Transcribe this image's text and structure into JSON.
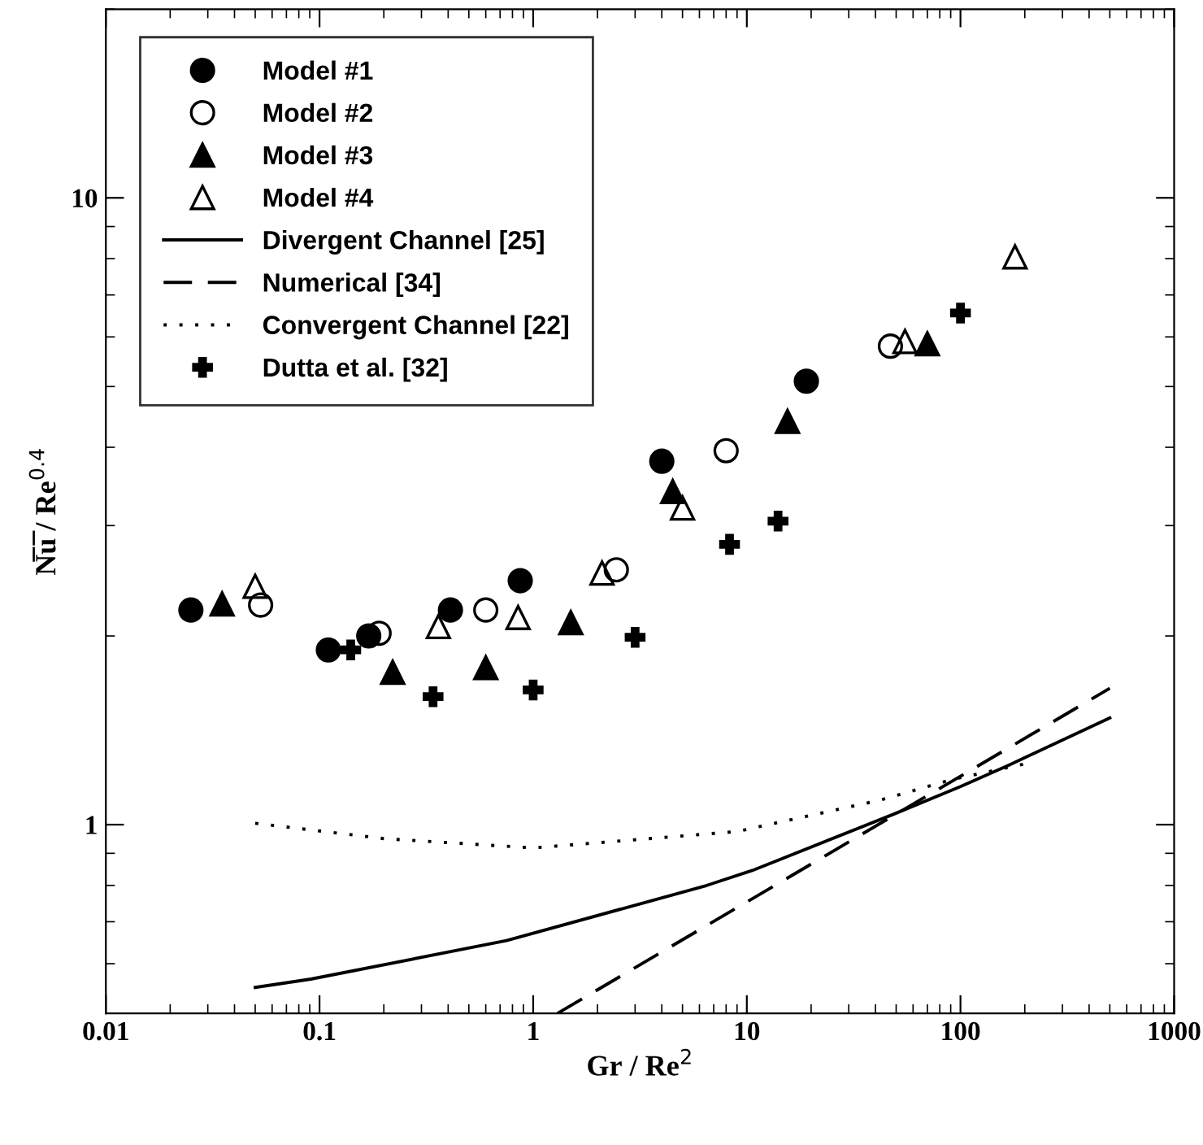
{
  "chart_data": {
    "type": "scatter",
    "xlabel": "Gr / Re$^{2}$",
    "ylabel": "N̅u̅ / Re$^{0.4}$",
    "log": "xy",
    "xlim": [
      0.01,
      1000
    ],
    "ylim": [
      0.5,
      20
    ],
    "xticks": [
      0.01,
      0.1,
      1,
      10,
      100,
      1000
    ],
    "yticks": [
      1,
      10
    ],
    "grid": false,
    "legend": "top left",
    "series": [
      {
        "name": "Model #1",
        "marker": "circle",
        "color": "#000000",
        "x": [
          0.025,
          0.11,
          0.17,
          0.41,
          0.87,
          4.0,
          19
        ],
        "values": [
          2.2,
          1.9,
          2.0,
          2.2,
          2.45,
          3.8,
          5.1
        ]
      },
      {
        "name": "Model #2",
        "marker": "circle-open",
        "color": "#000000",
        "x": [
          0.053,
          0.19,
          0.6,
          2.45,
          8,
          47
        ],
        "values": [
          2.24,
          2.02,
          2.2,
          2.55,
          3.95,
          5.8
        ]
      },
      {
        "name": "Model #3",
        "marker": "triangle",
        "color": "#000000",
        "x": [
          0.035,
          0.22,
          0.6,
          1.5,
          4.5,
          15.5,
          70
        ],
        "values": [
          2.25,
          1.75,
          1.78,
          2.1,
          3.4,
          4.4,
          5.85
        ]
      },
      {
        "name": "Model #4",
        "marker": "triangle-open",
        "color": "#000000",
        "x": [
          0.05,
          0.36,
          0.85,
          2.1,
          5,
          55,
          180
        ],
        "values": [
          2.4,
          2.07,
          2.14,
          2.52,
          3.2,
          5.9,
          8.05
        ]
      },
      {
        "name": "Divergent Channel [25]",
        "type": "line",
        "line_style": "solid",
        "color": "#000000",
        "x": [
          0.05,
          0.091,
          0.75,
          6.5,
          10.6,
          49,
          100,
          169,
          500
        ],
        "values": [
          0.55,
          0.567,
          0.653,
          0.8,
          0.845,
          1.04,
          1.15,
          1.245,
          1.48
        ]
      },
      {
        "name": "Numerical [34]",
        "type": "line",
        "line_style": "dashed",
        "color": "#000000",
        "x": [
          1.3,
          500
        ],
        "values": [
          0.5,
          1.65
        ]
      },
      {
        "name": "Convergent Channel [22]",
        "type": "line",
        "line_style": "dotted",
        "color": "#000000",
        "x": [
          0.05,
          0.2,
          1.0,
          9,
          42,
          91,
          200
        ],
        "values": [
          1.005,
          0.95,
          0.918,
          0.975,
          1.094,
          1.18,
          1.25
        ]
      },
      {
        "name": "Dutta et al. [32]",
        "marker": "plus",
        "color": "#000000",
        "x": [
          0.14,
          0.34,
          1.0,
          3.0,
          8.3,
          14,
          100
        ],
        "values": [
          1.9,
          1.6,
          1.64,
          1.99,
          2.8,
          3.05,
          6.55
        ]
      }
    ]
  }
}
